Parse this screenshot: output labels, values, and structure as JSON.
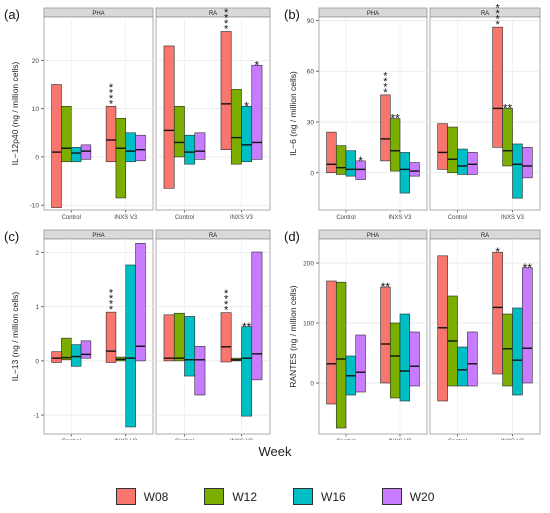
{
  "legend": {
    "title": "Week",
    "items": [
      {
        "label": "W08",
        "color": "#F8766D"
      },
      {
        "label": "W12",
        "color": "#7CAE00"
      },
      {
        "label": "W16",
        "color": "#00BFC4"
      },
      {
        "label": "W20",
        "color": "#C77CFF"
      }
    ]
  },
  "chart_data": [
    {
      "type": "bar",
      "panel_letter": "(a)",
      "ylabel": "IL−12p40 (ng / million cells)",
      "ylim": [
        -11,
        29
      ],
      "yticks": [
        -10,
        0,
        10,
        20
      ],
      "facets": [
        "PHA",
        "RA"
      ],
      "categories": [
        "Control",
        "INXS V3"
      ],
      "series": [
        "W08",
        "W12",
        "W16",
        "W20"
      ],
      "boxes": {
        "PHA": {
          "Control": [
            [
              -10.5,
              15,
              1
            ],
            [
              -1,
              10.5,
              1.8
            ],
            [
              -1,
              2,
              0.8
            ],
            [
              -0.5,
              2.5,
              1.2
            ]
          ],
          "INXS V3": [
            [
              -1,
              10.5,
              3.5
            ],
            [
              -8.5,
              8,
              1.8
            ],
            [
              -1,
              5,
              1.2
            ],
            [
              -0.8,
              4.5,
              1.5
            ]
          ]
        },
        "RA": {
          "Control": [
            [
              -6.5,
              23,
              5.5
            ],
            [
              0,
              10.5,
              3
            ],
            [
              -1.5,
              4.5,
              1
            ],
            [
              -0.5,
              5,
              1.2
            ]
          ],
          "INXS V3": [
            [
              1.5,
              26,
              11
            ],
            [
              -1.5,
              14,
              4
            ],
            [
              -1,
              10.5,
              2.5
            ],
            [
              -0.5,
              19,
              3
            ]
          ]
        }
      },
      "annotations": [
        {
          "facet": "PHA",
          "category": "INXS V3",
          "series": "W08",
          "label": "****"
        },
        {
          "facet": "RA",
          "category": "INXS V3",
          "series": "W08",
          "label": "****"
        },
        {
          "facet": "RA",
          "category": "INXS V3",
          "series": "W16",
          "label": "*"
        },
        {
          "facet": "RA",
          "category": "INXS V3",
          "series": "W20",
          "label": "*"
        }
      ]
    },
    {
      "type": "bar",
      "panel_letter": "(b)",
      "ylabel": "IL−6 (ng / million cells)",
      "ylim": [
        -22,
        92
      ],
      "yticks": [
        0,
        30,
        60,
        90
      ],
      "facets": [
        "PHA",
        "RA"
      ],
      "categories": [
        "Control",
        "INXS V3"
      ],
      "series": [
        "W08",
        "W12",
        "W16",
        "W20"
      ],
      "boxes": {
        "PHA": {
          "Control": [
            [
              0,
              24,
              5
            ],
            [
              -1,
              16,
              3
            ],
            [
              -2,
              13,
              2
            ],
            [
              -4,
              7,
              2
            ]
          ],
          "INXS V3": [
            [
              7,
              46,
              20
            ],
            [
              1,
              32,
              13
            ],
            [
              -12,
              12,
              2
            ],
            [
              -2,
              6,
              1
            ]
          ]
        },
        "RA": {
          "Control": [
            [
              2,
              29,
              12
            ],
            [
              0,
              27,
              8
            ],
            [
              -1,
              14,
              4
            ],
            [
              -1,
              12,
              5
            ]
          ],
          "INXS V3": [
            [
              15,
              86,
              38
            ],
            [
              4,
              38,
              13
            ],
            [
              -15,
              17,
              5
            ],
            [
              -3,
              15,
              4
            ]
          ]
        }
      },
      "annotations": [
        {
          "facet": "PHA",
          "category": "Control",
          "series": "W20",
          "label": "*"
        },
        {
          "facet": "PHA",
          "category": "INXS V3",
          "series": "W08",
          "label": "****"
        },
        {
          "facet": "PHA",
          "category": "INXS V3",
          "series": "W12",
          "label": "**"
        },
        {
          "facet": "RA",
          "category": "INXS V3",
          "series": "W08",
          "label": "****"
        },
        {
          "facet": "RA",
          "category": "INXS V3",
          "series": "W12",
          "label": "**"
        }
      ]
    },
    {
      "type": "bar",
      "panel_letter": "(c)",
      "ylabel": "IL−13 (ng / million cells)",
      "ylim": [
        -1.35,
        2.25
      ],
      "yticks": [
        -1,
        0,
        1,
        2
      ],
      "facets": [
        "PHA",
        "RA"
      ],
      "categories": [
        "Control",
        "INXS V3"
      ],
      "series": [
        "W08",
        "W12",
        "W16",
        "W20"
      ],
      "boxes": {
        "PHA": {
          "Control": [
            [
              -0.03,
              0.17,
              0.05
            ],
            [
              0.02,
              0.42,
              0.06
            ],
            [
              -0.1,
              0.3,
              0.08
            ],
            [
              0.05,
              0.37,
              0.12
            ]
          ],
          "INXS V3": [
            [
              -0.03,
              0.9,
              0.18
            ],
            [
              0,
              0.07,
              0.03
            ],
            [
              -1.22,
              1.77,
              0.05
            ],
            [
              0,
              2.17,
              0.27
            ]
          ]
        },
        "RA": {
          "Control": [
            [
              0,
              0.85,
              0.05
            ],
            [
              0,
              0.88,
              0.05
            ],
            [
              -0.28,
              0.82,
              0.02
            ],
            [
              -0.63,
              0.27,
              0.02
            ]
          ],
          "INXS V3": [
            [
              -0.02,
              0.89,
              0.26
            ],
            [
              0,
              0.05,
              0.02
            ],
            [
              -1.02,
              0.63,
              0.05
            ],
            [
              -0.35,
              2.01,
              0.13
            ]
          ]
        }
      },
      "annotations": [
        {
          "facet": "PHA",
          "category": "INXS V3",
          "series": "W08",
          "label": "****"
        },
        {
          "facet": "RA",
          "category": "INXS V3",
          "series": "W08",
          "label": "****"
        },
        {
          "facet": "RA",
          "category": "INXS V3",
          "series": "W16",
          "label": "**"
        }
      ]
    },
    {
      "type": "bar",
      "panel_letter": "(d)",
      "ylabel": "RANTES (ng / million cells)",
      "ylim": [
        -85,
        240
      ],
      "yticks": [
        0,
        100,
        200
      ],
      "facets": [
        "PHA",
        "RA"
      ],
      "categories": [
        "Control",
        "INXS V3"
      ],
      "series": [
        "W08",
        "W12",
        "W16",
        "W20"
      ],
      "boxes": {
        "PHA": {
          "Control": [
            [
              -35,
              170,
              32
            ],
            [
              -75,
              168,
              40
            ],
            [
              -20,
              45,
              12
            ],
            [
              -15,
              80,
              18
            ]
          ],
          "INXS V3": [
            [
              0,
              160,
              65
            ],
            [
              -25,
              100,
              45
            ],
            [
              -30,
              115,
              20
            ],
            [
              -5,
              85,
              28
            ]
          ]
        },
        "RA": {
          "Control": [
            [
              -30,
              212,
              92
            ],
            [
              -5,
              145,
              70
            ],
            [
              -5,
              60,
              22
            ],
            [
              -5,
              85,
              32
            ]
          ],
          "INXS V3": [
            [
              15,
              218,
              126
            ],
            [
              -5,
              115,
              57
            ],
            [
              -20,
              125,
              38
            ],
            [
              0,
              192,
              58
            ]
          ]
        }
      },
      "annotations": [
        {
          "facet": "PHA",
          "category": "INXS V3",
          "series": "W08",
          "label": "**"
        },
        {
          "facet": "RA",
          "category": "INXS V3",
          "series": "W08",
          "label": "*"
        },
        {
          "facet": "RA",
          "category": "INXS V3",
          "series": "W20",
          "label": "**"
        }
      ]
    }
  ]
}
